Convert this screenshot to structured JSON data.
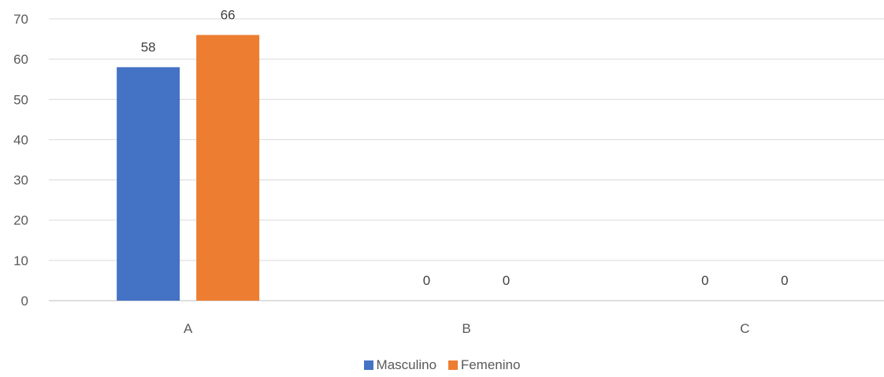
{
  "chart_data": {
    "type": "bar",
    "title": "",
    "xlabel": "",
    "ylabel": "",
    "categories": [
      "A",
      "B",
      "C"
    ],
    "series": [
      {
        "name": "Masculino",
        "values": [
          58,
          0,
          0
        ],
        "color": "#4472C4"
      },
      {
        "name": "Femenino",
        "values": [
          66,
          0,
          0
        ],
        "color": "#ED7D31"
      }
    ],
    "ylim": [
      0,
      70
    ],
    "yticks": [
      0,
      10,
      20,
      30,
      40,
      50,
      60,
      70
    ],
    "grid": true,
    "legend_position": "bottom",
    "data_labels": true
  }
}
